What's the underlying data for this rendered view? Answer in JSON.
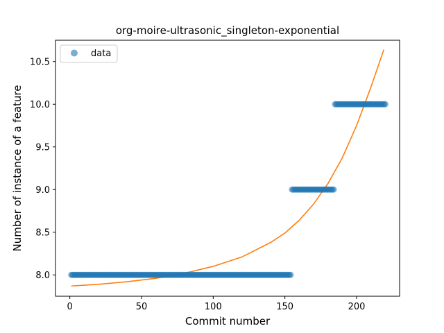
{
  "chart_data": {
    "type": "scatter",
    "title": "org-moire-ultrasonic_singleton-exponential",
    "xlabel": "Commit number",
    "ylabel": "Number of instance of a feature",
    "xlim": [
      -10,
      230
    ],
    "ylim": [
      7.75,
      10.75
    ],
    "xticks": [
      0,
      50,
      100,
      150,
      200
    ],
    "xtick_labels": [
      "0",
      "50",
      "100",
      "150",
      "200"
    ],
    "yticks": [
      8.0,
      8.5,
      9.0,
      9.5,
      10.0,
      10.5
    ],
    "ytick_labels": [
      "8.0",
      "8.5",
      "9.0",
      "9.5",
      "10.0",
      "10.5"
    ],
    "grid": false,
    "legend_placement": "upper-left",
    "series": [
      {
        "name": "data",
        "kind": "points",
        "color": "#1f77b4",
        "segments": [
          {
            "x_start": 1,
            "x_end": 154,
            "y": 8
          },
          {
            "x_start": 155,
            "x_end": 184,
            "y": 9
          },
          {
            "x_start": 185,
            "x_end": 220,
            "y": 10
          }
        ]
      },
      {
        "kind": "fit-line",
        "color": "#ff7f0e",
        "x": [
          1,
          20,
          40,
          60,
          80,
          100,
          120,
          140,
          150,
          160,
          170,
          180,
          190,
          200,
          210,
          219
        ],
        "y": [
          7.87,
          7.89,
          7.92,
          7.96,
          8.02,
          8.1,
          8.21,
          8.38,
          8.49,
          8.64,
          8.83,
          9.07,
          9.37,
          9.75,
          10.2,
          10.64
        ]
      }
    ]
  }
}
